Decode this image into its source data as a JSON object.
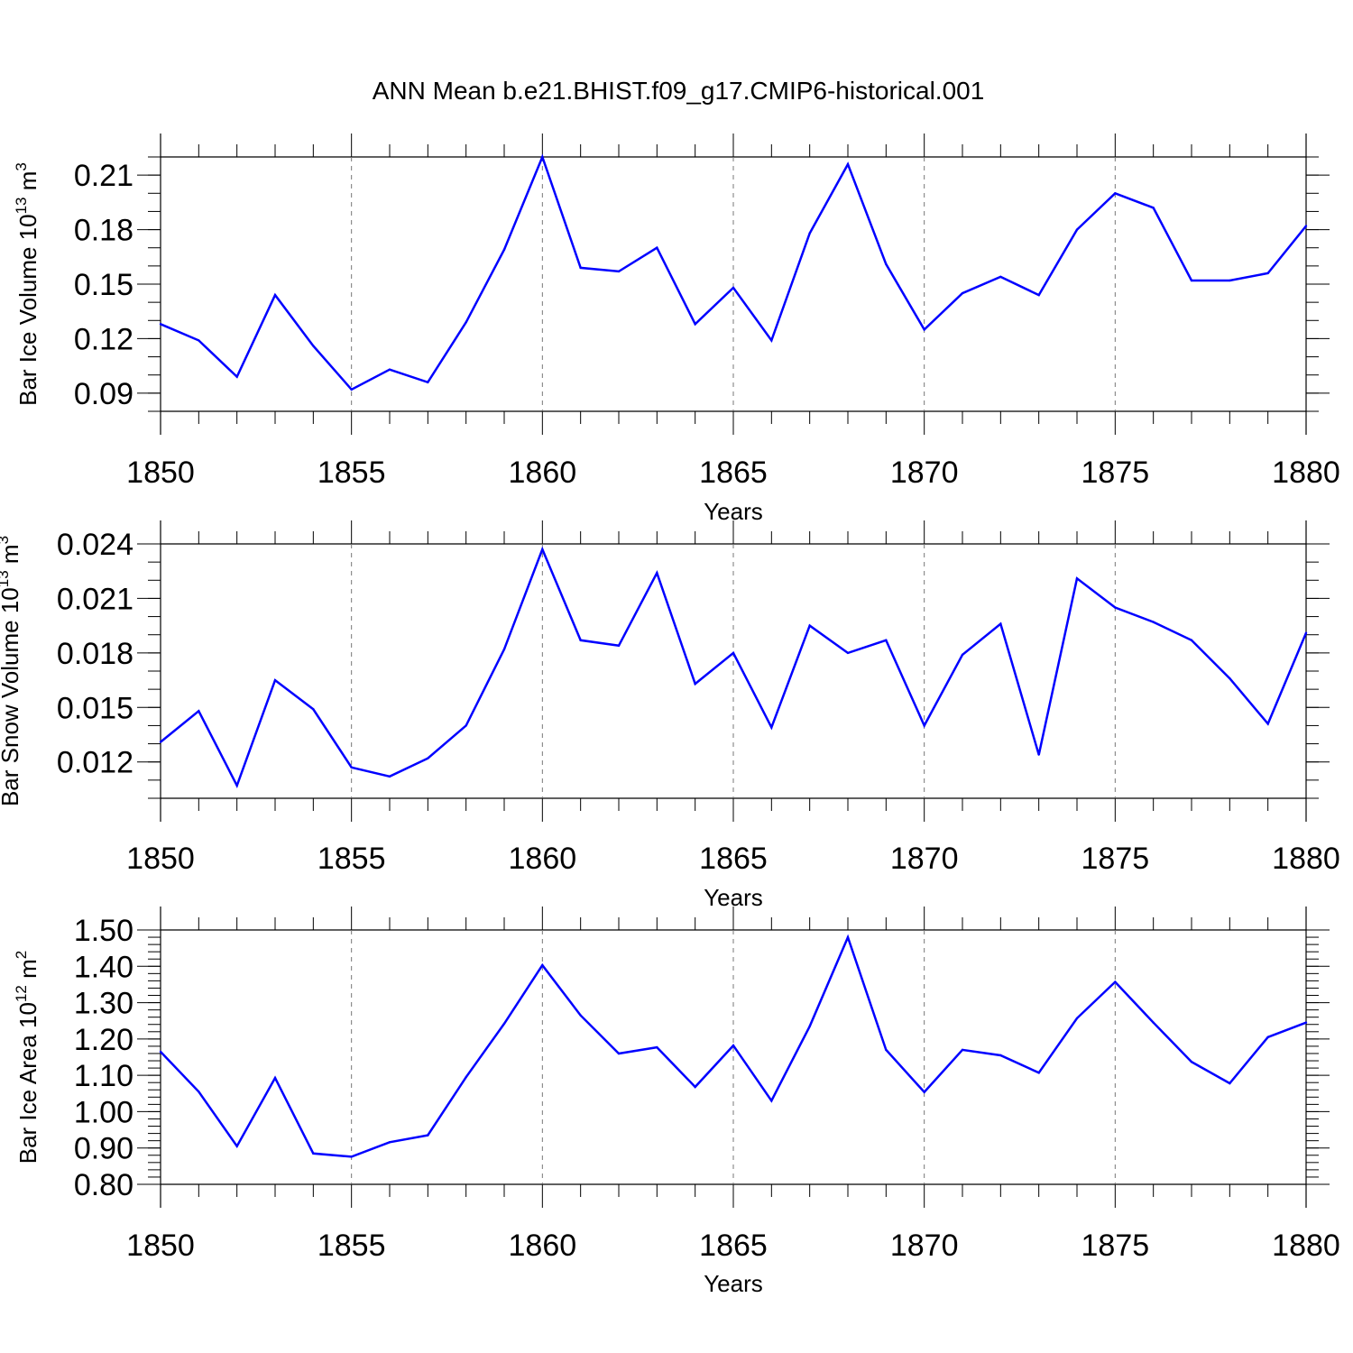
{
  "title": "ANN Mean b.e21.BHIST.f09_g17.CMIP6-historical.001",
  "line_color": "#0000ff",
  "chart_data": [
    {
      "type": "line",
      "ylabel": "Bar Ice Volume 10",
      "ylabel_exp": "13",
      "ylabel_unit": " m",
      "ylabel_unit_exp": "3",
      "xlabel": "Years",
      "xlim": [
        1850,
        1880
      ],
      "ylim": [
        0.08,
        0.22
      ],
      "yticks": [
        0.09,
        0.12,
        0.15,
        0.18,
        0.21
      ],
      "ytick_labels": [
        "0.09",
        "0.12",
        "0.15",
        "0.18",
        "0.21"
      ],
      "yminor_step": 0.01,
      "xticks": [
        1850,
        1855,
        1860,
        1865,
        1870,
        1875,
        1880
      ],
      "xtick_labels": [
        "1850",
        "1855",
        "1860",
        "1865",
        "1870",
        "1875",
        "1880"
      ],
      "x": [
        1850,
        1851,
        1852,
        1853,
        1854,
        1855,
        1856,
        1857,
        1858,
        1859,
        1860,
        1861,
        1862,
        1863,
        1864,
        1865,
        1866,
        1867,
        1868,
        1869,
        1870,
        1871,
        1872,
        1873,
        1874,
        1875,
        1876,
        1877,
        1878,
        1879,
        1880
      ],
      "values": [
        0.128,
        0.119,
        0.099,
        0.144,
        0.116,
        0.092,
        0.103,
        0.096,
        0.129,
        0.169,
        0.22,
        0.159,
        0.157,
        0.17,
        0.128,
        0.148,
        0.119,
        0.178,
        0.216,
        0.161,
        0.125,
        0.145,
        0.154,
        0.144,
        0.18,
        0.2,
        0.192,
        0.152,
        0.152,
        0.156,
        0.182
      ]
    },
    {
      "type": "line",
      "ylabel": "Bar Snow Volume 10",
      "ylabel_exp": "13",
      "ylabel_unit": " m",
      "ylabel_unit_exp": "3",
      "xlabel": "Years",
      "xlim": [
        1850,
        1880
      ],
      "ylim": [
        0.01,
        0.024
      ],
      "yticks": [
        0.012,
        0.015,
        0.018,
        0.021,
        0.024
      ],
      "ytick_labels": [
        "0.012",
        "0.015",
        "0.018",
        "0.021",
        "0.024"
      ],
      "yminor_step": 0.001,
      "xticks": [
        1850,
        1855,
        1860,
        1865,
        1870,
        1875,
        1880
      ],
      "xtick_labels": [
        "1850",
        "1855",
        "1860",
        "1865",
        "1870",
        "1875",
        "1880"
      ],
      "x": [
        1850,
        1851,
        1852,
        1853,
        1854,
        1855,
        1856,
        1857,
        1858,
        1859,
        1860,
        1861,
        1862,
        1863,
        1864,
        1865,
        1866,
        1867,
        1868,
        1869,
        1870,
        1871,
        1872,
        1873,
        1874,
        1875,
        1876,
        1877,
        1878,
        1879,
        1880
      ],
      "values": [
        0.0131,
        0.0148,
        0.0107,
        0.0165,
        0.0149,
        0.0117,
        0.0112,
        0.0122,
        0.014,
        0.0182,
        0.0237,
        0.0187,
        0.0184,
        0.0224,
        0.0163,
        0.018,
        0.0139,
        0.0195,
        0.018,
        0.0187,
        0.014,
        0.0179,
        0.0196,
        0.0124,
        0.0221,
        0.0205,
        0.0197,
        0.0187,
        0.0166,
        0.0141,
        0.0191
      ]
    },
    {
      "type": "line",
      "ylabel": "Bar Ice Area 10",
      "ylabel_exp": "12",
      "ylabel_unit": " m",
      "ylabel_unit_exp": "2",
      "xlabel": "Years",
      "xlim": [
        1850,
        1880
      ],
      "ylim": [
        0.8,
        1.5
      ],
      "yticks": [
        0.8,
        0.9,
        1.0,
        1.1,
        1.2,
        1.3,
        1.4,
        1.5
      ],
      "ytick_labels": [
        "0.80",
        "0.90",
        "1.00",
        "1.10",
        "1.20",
        "1.30",
        "1.40",
        "1.50"
      ],
      "yminor_step": 0.02,
      "xticks": [
        1850,
        1855,
        1860,
        1865,
        1870,
        1875,
        1880
      ],
      "xtick_labels": [
        "1850",
        "1855",
        "1860",
        "1865",
        "1870",
        "1875",
        "1880"
      ],
      "x": [
        1850,
        1851,
        1852,
        1853,
        1854,
        1855,
        1856,
        1857,
        1858,
        1859,
        1860,
        1861,
        1862,
        1863,
        1864,
        1865,
        1866,
        1867,
        1868,
        1869,
        1870,
        1871,
        1872,
        1873,
        1874,
        1875,
        1876,
        1877,
        1878,
        1879,
        1880
      ],
      "values": [
        1.165,
        1.055,
        0.905,
        1.093,
        0.885,
        0.876,
        0.916,
        0.935,
        1.095,
        1.242,
        1.403,
        1.265,
        1.16,
        1.177,
        1.068,
        1.182,
        1.03,
        1.235,
        1.48,
        1.17,
        1.054,
        1.17,
        1.155,
        1.107,
        1.257,
        1.357,
        1.245,
        1.137,
        1.078,
        1.205,
        1.245
      ]
    }
  ]
}
